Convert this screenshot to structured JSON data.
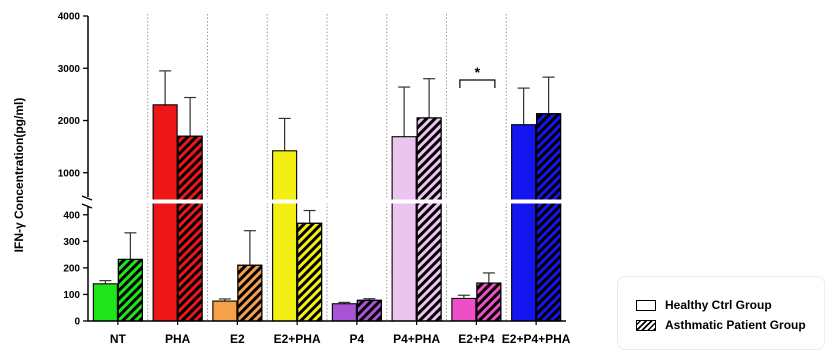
{
  "chart_data": {
    "type": "bar",
    "ylabel": "IFN-γ Concentration(pg/ml)",
    "y_axis_break": {
      "lower": [
        0,
        450
      ],
      "upper": [
        450,
        4000
      ]
    },
    "yticks_lower": [
      "0",
      "100",
      "200",
      "300",
      "400"
    ],
    "yticks_upper": [
      "1000",
      "2000",
      "3000",
      "4000"
    ],
    "categories": [
      "NT",
      "PHA",
      "E2",
      "E2+PHA",
      "P4",
      "P4+PHA",
      "E2+P4",
      "E2+P4+PHA"
    ],
    "colors": [
      "#22e41c",
      "#ee1717",
      "#f6a04a",
      "#f4ef12",
      "#a953d6",
      "#ecc4f0",
      "#ef4ec9",
      "#1515f0"
    ],
    "series": [
      {
        "name": "Healthy Ctrl Group",
        "pattern": "solid",
        "values": [
          140,
          2300,
          75,
          1420,
          65,
          1690,
          85,
          1920
        ],
        "errors": [
          12,
          650,
          8,
          620,
          5,
          950,
          12,
          700
        ]
      },
      {
        "name": "Asthmatic Patient Group",
        "pattern": "hatched",
        "values": [
          232,
          1700,
          210,
          368,
          78,
          2050,
          143,
          2130
        ],
        "errors": [
          100,
          740,
          130,
          48,
          6,
          750,
          38,
          700
        ]
      }
    ],
    "annotations": [
      {
        "label": "*",
        "category": "E2+P4"
      }
    ],
    "legend_position": "bottom-right"
  }
}
